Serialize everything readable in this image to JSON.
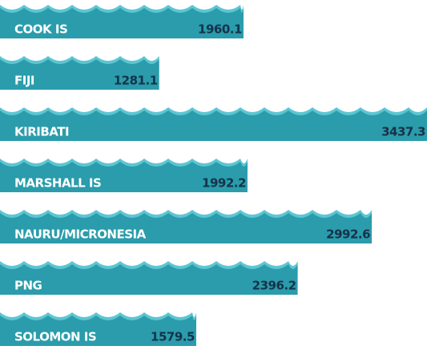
{
  "chart_data": {
    "type": "bar",
    "categories": [
      "COOK IS",
      "FIJI",
      "KIRIBATI",
      "MARSHALL IS",
      "NAURU/MICRONESIA",
      "PNG",
      "SOLOMON IS"
    ],
    "values": [
      1960.1,
      1281.1,
      3437.3,
      1992.2,
      2992.6,
      2396.2,
      1579.5
    ],
    "color": "#2a9cab"
  }
}
